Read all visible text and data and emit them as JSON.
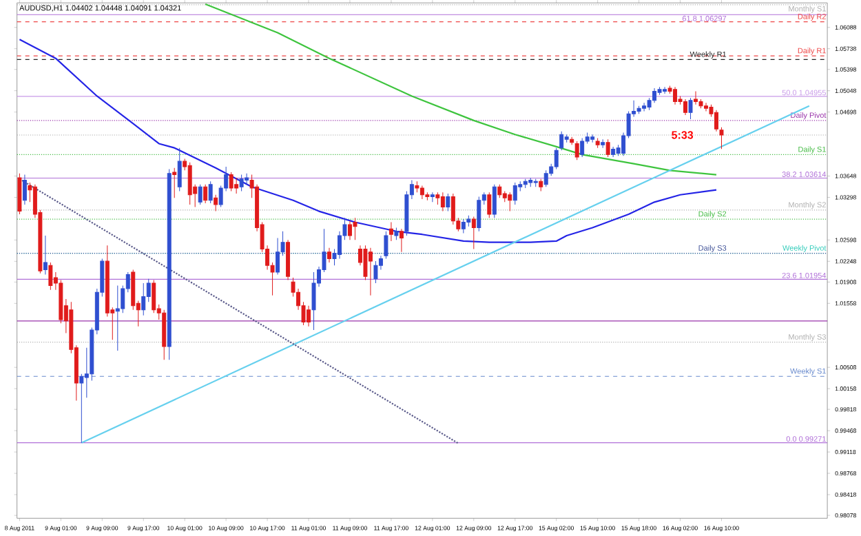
{
  "chart_data": {
    "type": "candlestick",
    "title": "AUDUSD,H1 1.04402 1.04448 1.04091 1.04321",
    "categories": [
      "8 Aug 2011",
      null,
      null,
      null,
      null,
      null,
      null,
      null,
      "9 Aug 01:00",
      null,
      null,
      null,
      null,
      null,
      null,
      null,
      "9 Aug 09:00",
      null,
      null,
      null,
      null,
      null,
      null,
      null,
      "9 Aug 17:00",
      null,
      null,
      null,
      null,
      null,
      null,
      null,
      "10 Aug 01:00",
      null,
      null,
      null,
      null,
      null,
      null,
      null,
      "10 Aug 09:00",
      null,
      null,
      null,
      null,
      null,
      null,
      null,
      "10 Aug 17:00",
      null,
      null,
      null,
      null,
      null,
      null,
      null,
      "11 Aug 01:00",
      null,
      null,
      null,
      null,
      null,
      null,
      null,
      "11 Aug 09:00",
      null,
      null,
      null,
      null,
      null,
      null,
      null,
      "11 Aug 17:00",
      null,
      null,
      null,
      null,
      null,
      null,
      null,
      "12 Aug 01:00",
      null,
      null,
      null,
      null,
      null,
      null,
      null,
      "12 Aug 09:00",
      null,
      null,
      null,
      null,
      null,
      null,
      null,
      "12 Aug 17:00",
      null,
      null,
      null,
      null,
      null,
      null,
      null,
      "15 Aug 02:00",
      null,
      null,
      null,
      null,
      null,
      null,
      null,
      "15 Aug 10:00",
      null,
      null,
      null,
      null,
      null,
      null,
      null,
      "15 Aug 18:00",
      null,
      null,
      null,
      null,
      null,
      null,
      null,
      "16 Aug 02:00",
      null,
      null,
      null,
      null,
      null,
      null,
      null,
      "16 Aug 10:00",
      null,
      null,
      null,
      null,
      null,
      null,
      null,
      null,
      null,
      null,
      null,
      null,
      null,
      null,
      null,
      null,
      null,
      null,
      null,
      null
    ],
    "ohlc": [
      [
        1.0362,
        1.0369,
        1.0302,
        1.0307
      ],
      [
        1.0325,
        1.0367,
        1.0318,
        1.0358
      ],
      [
        1.0349,
        1.0354,
        1.0322,
        1.0342
      ],
      [
        1.0347,
        1.0351,
        1.0296,
        1.0302
      ],
      [
        1.0305,
        1.0309,
        1.0205,
        1.0209
      ],
      [
        1.0211,
        1.0267,
        1.0203,
        1.0223
      ],
      [
        1.0218,
        1.0223,
        1.0178,
        1.0185
      ],
      [
        1.0198,
        1.0207,
        1.0178,
        1.0189
      ],
      [
        1.0189,
        1.0194,
        1.0123,
        1.0129
      ],
      [
        1.0152,
        1.0163,
        1.0107,
        1.0127
      ],
      [
        1.0145,
        1.0158,
        1.0074,
        1.008
      ],
      [
        1.0083,
        1.0087,
        0.9996,
        1.0025
      ],
      [
        1.0025,
        1.004,
        0.9927,
        1.0036
      ],
      [
        1.0034,
        1.0083,
        1.0001,
        1.004
      ],
      [
        1.004,
        1.0116,
        1.0029,
        1.0112
      ],
      [
        1.0112,
        1.018,
        1.0105,
        1.0174
      ],
      [
        1.0174,
        1.0229,
        1.0167,
        1.0225
      ],
      [
        1.0225,
        1.0251,
        1.0134,
        1.014
      ],
      [
        1.0145,
        1.0149,
        1.0096,
        1.014
      ],
      [
        1.0143,
        1.0185,
        1.0078,
        1.0147
      ],
      [
        1.0147,
        1.0185,
        1.014,
        1.018
      ],
      [
        1.018,
        1.0207,
        1.0174,
        1.0203
      ],
      [
        1.0207,
        1.0211,
        1.0145,
        1.0152
      ],
      [
        1.0156,
        1.016,
        1.0118,
        1.0145
      ],
      [
        1.0145,
        1.0189,
        1.0136,
        1.0167
      ],
      [
        1.0167,
        1.0196,
        1.0158,
        1.0189
      ],
      [
        1.0189,
        1.0194,
        1.014,
        1.0145
      ],
      [
        1.0147,
        1.0154,
        1.0129,
        1.014
      ],
      [
        1.014,
        1.0145,
        1.0063,
        1.0085
      ],
      [
        1.0085,
        1.0376,
        1.0063,
        1.0369
      ],
      [
        1.0371,
        1.0378,
        1.0329,
        1.0367
      ],
      [
        1.0347,
        1.0411,
        1.034,
        1.0389
      ],
      [
        1.0389,
        1.0393,
        1.0374,
        1.038
      ],
      [
        1.0382,
        1.0387,
        1.0318,
        1.0334
      ],
      [
        1.0347,
        1.0351,
        1.0314,
        1.0336
      ],
      [
        1.0322,
        1.0351,
        1.0318,
        1.0347
      ],
      [
        1.0347,
        1.0351,
        1.032,
        1.0325
      ],
      [
        1.0325,
        1.0356,
        1.032,
        1.0351
      ],
      [
        1.0329,
        1.0334,
        1.0307,
        1.0318
      ],
      [
        1.0318,
        1.0349,
        1.0314,
        1.0345
      ],
      [
        1.0345,
        1.038,
        1.034,
        1.0367
      ],
      [
        1.0367,
        1.0371,
        1.034,
        1.0345
      ],
      [
        1.0351,
        1.0362,
        1.0336,
        1.0345
      ],
      [
        1.0347,
        1.0367,
        1.034,
        1.036
      ],
      [
        1.0358,
        1.0369,
        1.0351,
        1.0362
      ],
      [
        1.0358,
        1.0367,
        1.0329,
        1.0345
      ],
      [
        1.0347,
        1.0351,
        1.0274,
        1.028
      ],
      [
        1.0285,
        1.0289,
        1.024,
        1.0245
      ],
      [
        1.0245,
        1.0251,
        1.0211,
        1.0218
      ],
      [
        1.0218,
        1.0223,
        1.0169,
        1.0207
      ],
      [
        1.0207,
        1.0263,
        1.0203,
        1.024
      ],
      [
        1.024,
        1.0274,
        1.0234,
        1.0256
      ],
      [
        1.0256,
        1.026,
        1.0194,
        1.02
      ],
      [
        1.0191,
        1.0198,
        1.0167,
        1.0174
      ],
      [
        1.0174,
        1.018,
        1.0145,
        1.0152
      ],
      [
        1.0152,
        1.0158,
        1.012,
        1.0125
      ],
      [
        1.0145,
        1.0152,
        1.0118,
        1.0125
      ],
      [
        1.0145,
        1.0207,
        1.0112,
        1.0189
      ],
      [
        1.0189,
        1.0216,
        1.0183,
        1.0211
      ],
      [
        1.0211,
        1.0278,
        1.0207,
        1.024
      ],
      [
        1.024,
        1.0247,
        1.0223,
        1.0229
      ],
      [
        1.0229,
        1.0245,
        1.0218,
        1.0238
      ],
      [
        1.0236,
        1.0274,
        1.0229,
        1.0267
      ],
      [
        1.0267,
        1.0296,
        1.026,
        1.0285
      ],
      [
        1.0285,
        1.0291,
        1.026,
        1.0267
      ],
      [
        1.0289,
        1.0296,
        1.026,
        1.0282
      ],
      [
        1.0245,
        1.0251,
        1.0218,
        1.0223
      ],
      [
        1.0245,
        1.0251,
        1.0194,
        1.02
      ],
      [
        1.024,
        1.0247,
        1.0169,
        1.0225
      ],
      [
        1.0196,
        1.0225,
        1.0189,
        1.0218
      ],
      [
        1.0218,
        1.0234,
        1.0211,
        1.0229
      ],
      [
        1.0234,
        1.0274,
        1.0229,
        1.0267
      ],
      [
        1.0278,
        1.0289,
        1.0258,
        1.0269
      ],
      [
        1.0267,
        1.028,
        1.026,
        1.0274
      ],
      [
        1.0274,
        1.0278,
        1.024,
        1.0263
      ],
      [
        1.0274,
        1.034,
        1.0267,
        1.0334
      ],
      [
        1.0334,
        1.0358,
        1.0327,
        1.0351
      ],
      [
        1.0349,
        1.0356,
        1.0338,
        1.0345
      ],
      [
        1.0345,
        1.0349,
        1.0327,
        1.0334
      ],
      [
        1.0334,
        1.0338,
        1.0325,
        1.0331
      ],
      [
        1.0331,
        1.0338,
        1.0322,
        1.0334
      ],
      [
        1.0334,
        1.0338,
        1.0318,
        1.0329
      ],
      [
        1.0331,
        1.0338,
        1.0307,
        1.0314
      ],
      [
        1.0314,
        1.0336,
        1.0307,
        1.0331
      ],
      [
        1.0331,
        1.0336,
        1.0285,
        1.0291
      ],
      [
        1.0291,
        1.0296,
        1.0274,
        1.0278
      ],
      [
        1.0278,
        1.0294,
        1.0271,
        1.0289
      ],
      [
        1.0289,
        1.03,
        1.0282,
        1.0294
      ],
      [
        1.0294,
        1.0298,
        1.0245,
        1.028
      ],
      [
        1.028,
        1.0331,
        1.0274,
        1.0325
      ],
      [
        1.0325,
        1.0338,
        1.0318,
        1.0334
      ],
      [
        1.0334,
        1.0338,
        1.0296,
        1.0302
      ],
      [
        1.0302,
        1.0351,
        1.0296,
        1.0347
      ],
      [
        1.0347,
        1.0351,
        1.0329,
        1.0334
      ],
      [
        1.0336,
        1.034,
        1.0322,
        1.0329
      ],
      [
        1.0334,
        1.0338,
        1.0307,
        1.0325
      ],
      [
        1.0325,
        1.0354,
        1.0318,
        1.0349
      ],
      [
        1.0347,
        1.0356,
        1.034,
        1.0351
      ],
      [
        1.0351,
        1.036,
        1.0345,
        1.0356
      ],
      [
        1.0354,
        1.0362,
        1.0347,
        1.0358
      ],
      [
        1.0354,
        1.036,
        1.0347,
        1.0356
      ],
      [
        1.0356,
        1.036,
        1.034,
        1.0347
      ],
      [
        1.0351,
        1.0374,
        1.0347,
        1.0369
      ],
      [
        1.0369,
        1.0385,
        1.0365,
        1.038
      ],
      [
        1.038,
        1.0411,
        1.0376,
        1.0407
      ],
      [
        1.0411,
        1.0438,
        1.0407,
        1.0433
      ],
      [
        1.0425,
        1.0433,
        1.042,
        1.0429
      ],
      [
        1.0425,
        1.0429,
        1.0416,
        1.042
      ],
      [
        1.0418,
        1.0422,
        1.0391,
        1.0396
      ],
      [
        1.04,
        1.0427,
        1.0396,
        1.0422
      ],
      [
        1.0422,
        1.0436,
        1.0418,
        1.0429
      ],
      [
        1.0425,
        1.0433,
        1.042,
        1.0429
      ],
      [
        1.0422,
        1.0427,
        1.0411,
        1.0416
      ],
      [
        1.0416,
        1.0425,
        1.0411,
        1.042
      ],
      [
        1.042,
        1.0425,
        1.0396,
        1.04
      ],
      [
        1.04,
        1.0413,
        1.0396,
        1.0409
      ],
      [
        1.0402,
        1.0416,
        1.0398,
        1.0411
      ],
      [
        1.0402,
        1.0436,
        1.0398,
        1.0431
      ],
      [
        1.0431,
        1.0471,
        1.0427,
        1.0467
      ],
      [
        1.0467,
        1.0489,
        1.0462,
        1.0471
      ],
      [
        1.0471,
        1.048,
        1.0467,
        1.0476
      ],
      [
        1.0476,
        1.0485,
        1.0471,
        1.048
      ],
      [
        1.0478,
        1.0493,
        1.0473,
        1.0489
      ],
      [
        1.0489,
        1.0509,
        1.0485,
        1.0504
      ],
      [
        1.0502,
        1.0511,
        1.0498,
        1.0507
      ],
      [
        1.0504,
        1.0511,
        1.05,
        1.0507
      ],
      [
        1.0509,
        1.0513,
        1.05,
        1.0504
      ],
      [
        1.0507,
        1.0511,
        1.0482,
        1.0487
      ],
      [
        1.0491,
        1.0496,
        1.0482,
        1.0487
      ],
      [
        1.0487,
        1.0491,
        1.0465,
        1.0469
      ],
      [
        1.0469,
        1.0493,
        1.0458,
        1.0489
      ],
      [
        1.0491,
        1.0504,
        1.0482,
        1.0487
      ],
      [
        1.0487,
        1.0491,
        1.0476,
        1.048
      ],
      [
        1.048,
        1.0485,
        1.0471,
        1.0476
      ],
      [
        1.0478,
        1.0482,
        1.0462,
        1.0467
      ],
      [
        1.0469,
        1.0473,
        1.0438,
        1.0442
      ],
      [
        1.04402,
        1.04448,
        1.04091,
        1.04321
      ],
      null,
      null,
      null,
      null,
      null,
      null,
      null,
      null,
      null,
      null,
      null,
      null,
      null,
      null,
      null,
      null,
      null,
      null,
      null,
      null
    ],
    "colors": [
      "#e01b1b",
      "#2f4fd0",
      "#e01b1b",
      "#e01b1b",
      "#e01b1b",
      "#2f4fd0",
      "#e01b1b",
      "#e01b1b",
      "#e01b1b",
      "#e01b1b",
      "#e01b1b",
      "#e01b1b",
      "#2f4fd0",
      "#2f4fd0",
      "#2f4fd0",
      "#2f4fd0",
      "#2f4fd0",
      "#e01b1b",
      "#e01b1b",
      "#2f4fd0",
      "#2f4fd0",
      "#2f4fd0",
      "#e01b1b",
      "#e01b1b",
      "#2f4fd0",
      "#2f4fd0",
      "#e01b1b",
      "#e01b1b",
      "#e01b1b",
      "#2f4fd0",
      "#e01b1b",
      "#2f4fd0",
      "#e01b1b",
      "#e01b1b",
      "#e01b1b",
      "#2f4fd0",
      "#e01b1b",
      "#2f4fd0",
      "#e01b1b",
      "#2f4fd0",
      "#2f4fd0",
      "#e01b1b",
      "#e01b1b",
      "#2f4fd0",
      "#2f4fd0",
      "#e01b1b",
      "#e01b1b",
      "#e01b1b",
      "#e01b1b",
      "#e01b1b",
      "#2f4fd0",
      "#2f4fd0",
      "#e01b1b",
      "#e01b1b",
      "#e01b1b",
      "#e01b1b",
      "#e01b1b",
      "#2f4fd0",
      "#2f4fd0",
      "#2f4fd0",
      "#e01b1b",
      "#2f4fd0",
      "#2f4fd0",
      "#2f4fd0",
      "#e01b1b",
      "#e01b1b",
      "#e01b1b",
      "#e01b1b",
      "#e01b1b",
      "#2f4fd0",
      "#2f4fd0",
      "#2f4fd0",
      "#e01b1b",
      "#2f4fd0",
      "#e01b1b",
      "#2f4fd0",
      "#2f4fd0",
      "#e01b1b",
      "#e01b1b",
      "#e01b1b",
      "#2f4fd0",
      "#e01b1b",
      "#e01b1b",
      "#2f4fd0",
      "#e01b1b",
      "#e01b1b",
      "#2f4fd0",
      "#2f4fd0",
      "#e01b1b",
      "#2f4fd0",
      "#2f4fd0",
      "#e01b1b",
      "#2f4fd0",
      "#e01b1b",
      "#e01b1b",
      "#e01b1b",
      "#2f4fd0",
      "#2f4fd0",
      "#2f4fd0",
      "#2f4fd0",
      "#2f4fd0",
      "#e01b1b",
      "#2f4fd0",
      "#2f4fd0",
      "#2f4fd0",
      "#2f4fd0",
      "#2f4fd0",
      "#e01b1b",
      "#e01b1b",
      "#2f4fd0",
      "#2f4fd0",
      "#2f4fd0",
      "#e01b1b",
      "#2f4fd0",
      "#e01b1b",
      "#2f4fd0",
      "#2f4fd0",
      "#2f4fd0",
      "#2f4fd0",
      "#2f4fd0",
      "#2f4fd0",
      "#2f4fd0",
      "#2f4fd0",
      "#2f4fd0",
      "#2f4fd0",
      "#2f4fd0",
      "#e01b1b",
      "#e01b1b",
      "#e01b1b",
      "#e01b1b",
      "#2f4fd0",
      "#e01b1b",
      "#e01b1b",
      "#e01b1b",
      "#e01b1b",
      "#e01b1b",
      "#e01b1b",
      null,
      null,
      null,
      null,
      null,
      null,
      null,
      null,
      null,
      null,
      null,
      null,
      null,
      null,
      null,
      null,
      null,
      null,
      null,
      null
    ],
    "series": [
      {
        "type": "line",
        "color": "#2424e6",
        "values": [
          1.0589,
          null,
          null,
          null,
          null,
          null,
          null,
          1.0558,
          null,
          null,
          null,
          null,
          null,
          null,
          null,
          1.0496,
          null,
          null,
          null,
          null,
          null,
          null,
          1.0451,
          null,
          null,
          null,
          null,
          1.0418,
          null,
          null,
          1.0411,
          null,
          null,
          null,
          null,
          null,
          null,
          null,
          1.0378,
          null,
          null,
          null,
          null,
          null,
          null,
          1.0347,
          null,
          null,
          null,
          null,
          null,
          null,
          null,
          1.0325,
          null,
          null,
          null,
          null,
          1.0307,
          null,
          null,
          null,
          null,
          null,
          null,
          1.0289,
          null,
          null,
          null,
          null,
          null,
          null,
          null,
          1.0274,
          null,
          null,
          null,
          null,
          1.0269,
          null,
          null,
          null,
          null,
          null,
          null,
          null,
          1.0258,
          null,
          null,
          null,
          null,
          1.0256,
          null,
          null,
          null,
          null,
          null,
          null,
          null,
          1.0256,
          null,
          null,
          null,
          null,
          1.0258,
          null,
          1.0267,
          null,
          null,
          null,
          null,
          1.028,
          null,
          null,
          null,
          null,
          null,
          null,
          1.0302,
          null,
          null,
          null,
          null,
          1.0322,
          null,
          null,
          null,
          null,
          1.0334,
          null,
          null,
          null,
          null,
          null,
          null,
          1.0342,
          null,
          null,
          null,
          null,
          null,
          null,
          null,
          null,
          null,
          null,
          null,
          null,
          null,
          null,
          null,
          null,
          null,
          null,
          null,
          null,
          null
        ]
      },
      {
        "type": "line",
        "color": "#3ec43e",
        "values": [
          null,
          null,
          null,
          null,
          null,
          null,
          null,
          null,
          null,
          null,
          null,
          null,
          null,
          null,
          null,
          null,
          null,
          null,
          null,
          null,
          null,
          null,
          null,
          null,
          null,
          null,
          null,
          null,
          null,
          null,
          null,
          null,
          null,
          null,
          null,
          null,
          1.0647,
          null,
          null,
          null,
          null,
          null,
          null,
          null,
          null,
          null,
          null,
          null,
          null,
          null,
          1.06,
          null,
          null,
          null,
          null,
          null,
          null,
          null,
          null,
          null,
          1.0558,
          null,
          null,
          null,
          null,
          null,
          null,
          null,
          null,
          null,
          null,
          null,
          null,
          null,
          null,
          null,
          1.0496,
          null,
          null,
          null,
          null,
          null,
          null,
          null,
          null,
          null,
          null,
          null,
          1.0456,
          null,
          null,
          null,
          null,
          null,
          null,
          null,
          1.0433,
          null,
          null,
          null,
          null,
          null,
          null,
          null,
          1.0413,
          null,
          null,
          null,
          null,
          1.04,
          null,
          null,
          null,
          null,
          null,
          null,
          null,
          null,
          null,
          1.0385,
          null,
          null,
          null,
          null,
          null,
          null,
          1.0374,
          null,
          null,
          null,
          null,
          null,
          null,
          null,
          null,
          1.0367,
          null,
          null,
          null,
          null,
          null,
          null,
          null,
          null,
          null,
          null,
          null,
          null,
          null,
          null,
          null,
          null,
          null,
          null,
          null,
          null,
          null
        ]
      },
      {
        "type": "line",
        "color": "#66d0ee",
        "values": [
          null,
          null,
          null,
          null,
          null,
          null,
          null,
          null,
          null,
          null,
          null,
          null,
          0.9927,
          null,
          null,
          null,
          null,
          null,
          null,
          null,
          null,
          null,
          null,
          null,
          null,
          null,
          null,
          null,
          null,
          null,
          null,
          null,
          null,
          null,
          null,
          null,
          null,
          null,
          null,
          null,
          null,
          null,
          null,
          null,
          null,
          null,
          null,
          null,
          null,
          null,
          null,
          null,
          null,
          null,
          null,
          null,
          null,
          null,
          null,
          null,
          null,
          null,
          null,
          null,
          null,
          null,
          null,
          null,
          null,
          null,
          null,
          null,
          null,
          null,
          null,
          null,
          null,
          null,
          null,
          null,
          null,
          null,
          null,
          null,
          null,
          null,
          null,
          null,
          null,
          null,
          null,
          null,
          null,
          null,
          null,
          null,
          null,
          null,
          null,
          null,
          null,
          null,
          null,
          null,
          null,
          null,
          null,
          null,
          null,
          null,
          null,
          null,
          null,
          null,
          null,
          null,
          null,
          null,
          null,
          null,
          null,
          null,
          null,
          null,
          null,
          null,
          null,
          null,
          null,
          null,
          null,
          null,
          null,
          null,
          null,
          null,
          null,
          null,
          null,
          null,
          null,
          null,
          null,
          null,
          null,
          null,
          null,
          null,
          null,
          null,
          null,
          null,
          null,
          1.048,
          null,
          null,
          null
        ]
      },
      {
        "type": "line",
        "color": "#5a5a8a",
        "line_style": "dotted",
        "values": [
          1.036,
          null,
          null,
          null,
          null,
          null,
          null,
          null,
          null,
          null,
          null,
          null,
          null,
          null,
          null,
          null,
          null,
          null,
          null,
          null,
          null,
          null,
          null,
          null,
          null,
          null,
          null,
          null,
          null,
          null,
          null,
          null,
          null,
          null,
          null,
          null,
          null,
          null,
          null,
          null,
          null,
          null,
          null,
          null,
          null,
          null,
          null,
          null,
          null,
          null,
          null,
          null,
          null,
          null,
          null,
          null,
          null,
          null,
          null,
          null,
          null,
          null,
          null,
          null,
          null,
          null,
          null,
          null,
          null,
          null,
          null,
          null,
          null,
          null,
          null,
          null,
          null,
          null,
          null,
          null,
          null,
          null,
          null,
          null,
          null,
          0.9926,
          null,
          null,
          null,
          null,
          null,
          null,
          null,
          null,
          null,
          null,
          null,
          null,
          null,
          null,
          null,
          null,
          null,
          null,
          null,
          null,
          null,
          null,
          null,
          null,
          null,
          null,
          null,
          null,
          null,
          null,
          null,
          null,
          null,
          null,
          null,
          null,
          null,
          null,
          null,
          null,
          null,
          null,
          null,
          null,
          null,
          null,
          null,
          null,
          null,
          null,
          null,
          null,
          null,
          null,
          null,
          null,
          null,
          null,
          null,
          null,
          null,
          null,
          null,
          null,
          null,
          null,
          null,
          null,
          null,
          null,
          null
        ]
      }
    ],
    "ylim": [
      0.9803,
      1.0649
    ],
    "yticks": [
      0.98078,
      0.98418,
      0.98768,
      0.99118,
      0.99468,
      0.99818,
      1.00158,
      1.00508,
      1.01558,
      1.01908,
      1.02248,
      1.02598,
      1.03298,
      1.03648,
      1.04698,
      1.05048,
      1.05398,
      1.05738,
      1.06088
    ],
    "ref_lines": [
      {
        "axis": "y",
        "value": 1.0646,
        "label": "Monthly S1",
        "color": "#b0b0b0",
        "line_style": "dotted"
      },
      {
        "axis": "y",
        "value": 1.06297,
        "label": "61.8 1.06297",
        "color": "#b070d8",
        "line_style": "solid"
      },
      {
        "axis": "y",
        "value": 1.0618,
        "label": "Daily R2",
        "color": "#ee4444",
        "line_style": "dashed"
      },
      {
        "axis": "y",
        "value": 1.0562,
        "label": "Daily R1",
        "color": "#ee4444",
        "line_style": "dashed"
      },
      {
        "axis": "y",
        "value": 1.0556,
        "label": "Weekly R1",
        "color": "#222222",
        "line_style": "dashed"
      },
      {
        "axis": "y",
        "value": 1.04955,
        "label": "50.0 1.04955",
        "color": "#c89ae8",
        "line_style": "solid"
      },
      {
        "axis": "y",
        "value": 1.0456,
        "label": "Daily Pivot",
        "color": "#9933aa",
        "line_style": "dotted"
      },
      {
        "axis": "y",
        "value": 1.04321,
        "color": "#aaaaaa",
        "line_style": "dotted"
      },
      {
        "axis": "y",
        "value": 1.04,
        "label": "Daily S1",
        "color": "#44bb44",
        "line_style": "dotted"
      },
      {
        "axis": "y",
        "value": 1.03614,
        "label": "38.2 1.03614",
        "color": "#b070d8",
        "line_style": "solid"
      },
      {
        "axis": "y",
        "value": 1.0309,
        "label": "Monthly S2",
        "color": "#b0b0b0",
        "line_style": "dotted"
      },
      {
        "axis": "y",
        "value": 1.0294,
        "label": "Daily S2",
        "color": "#44bb44",
        "line_style": "dotted"
      },
      {
        "axis": "y",
        "value": 1.0238,
        "label": "Weekly Pivot",
        "color": "#33ccbb",
        "line_style": "dotted"
      },
      {
        "axis": "y",
        "value": 1.0238,
        "label": "Daily S3",
        "color": "#445599",
        "line_style": "dotted"
      },
      {
        "axis": "y",
        "value": 1.01954,
        "label": "23.6 1.01954",
        "color": "#b070d8",
        "line_style": "solid"
      },
      {
        "axis": "y",
        "value": 1.0127,
        "color": "#9933aa",
        "line_style": "solid"
      },
      {
        "axis": "y",
        "value": 1.0092,
        "label": "Monthly S3",
        "color": "#b0b0b0",
        "line_style": "dotted"
      },
      {
        "axis": "y",
        "value": 1.0036,
        "label": "Weekly S1",
        "color": "#6688cc",
        "line_style": "dashed"
      },
      {
        "axis": "y",
        "value": 0.99271,
        "label": "0.0 0.99271",
        "color": "#b070d8",
        "line_style": "solid"
      }
    ],
    "annotations": [
      "5:33"
    ]
  }
}
